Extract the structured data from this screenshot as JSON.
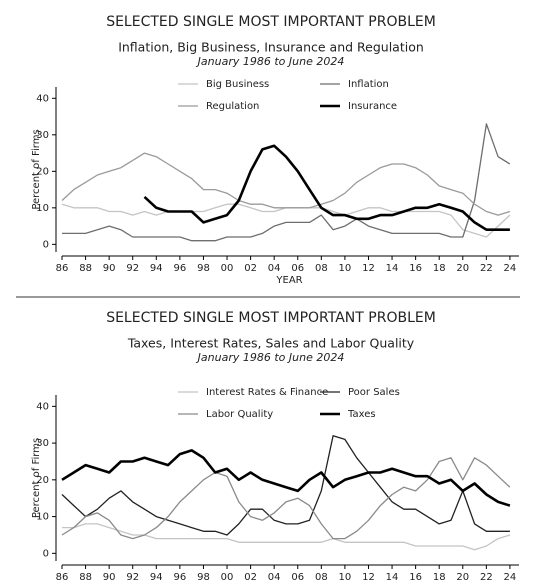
{
  "chart_data": [
    {
      "type": "line",
      "title": "SELECTED SINGLE MOST IMPORTANT PROBLEM",
      "subtitle": "Inflation, Big Business, Insurance and Regulation",
      "date_range": "January 1986 to June 2024",
      "xlabel": "YEAR",
      "ylabel": "Percent of Firms",
      "x": [
        1986,
        1987,
        1988,
        1989,
        1990,
        1991,
        1992,
        1993,
        1994,
        1995,
        1996,
        1997,
        1998,
        1999,
        2000,
        2001,
        2002,
        2003,
        2004,
        2005,
        2006,
        2007,
        2008,
        2009,
        2010,
        2011,
        2012,
        2013,
        2014,
        2015,
        2016,
        2017,
        2018,
        2019,
        2020,
        2021,
        2022,
        2023,
        2024
      ],
      "xlim": [
        1986,
        2024.6
      ],
      "xticks": [
        {
          "value": 1986,
          "label": "86"
        },
        {
          "value": 1988,
          "label": "88"
        },
        {
          "value": 1990,
          "label": "90"
        },
        {
          "value": 1992,
          "label": "92"
        },
        {
          "value": 1994,
          "label": "94"
        },
        {
          "value": 1996,
          "label": "96"
        },
        {
          "value": 1998,
          "label": "98"
        },
        {
          "value": 2000,
          "label": "00"
        },
        {
          "value": 2002,
          "label": "02"
        },
        {
          "value": 2004,
          "label": "04"
        },
        {
          "value": 2006,
          "label": "06"
        },
        {
          "value": 2008,
          "label": "08"
        },
        {
          "value": 2010,
          "label": "10"
        },
        {
          "value": 2012,
          "label": "12"
        },
        {
          "value": 2014,
          "label": "14"
        },
        {
          "value": 2016,
          "label": "16"
        },
        {
          "value": 2018,
          "label": "18"
        },
        {
          "value": 2020,
          "label": "20"
        },
        {
          "value": 2022,
          "label": "22"
        },
        {
          "value": 2024,
          "label": "24"
        }
      ],
      "ylim": [
        -1,
        42
      ],
      "yticks": [
        0,
        10,
        20,
        30,
        40
      ],
      "series": [
        {
          "name": "Big Business",
          "color": "#c4c4c4",
          "width": 1.3,
          "values": [
            11,
            10,
            10,
            10,
            9,
            9,
            8,
            9,
            8,
            9,
            9,
            9,
            9,
            10,
            11,
            11,
            10,
            9,
            9,
            10,
            10,
            10,
            10,
            9,
            8,
            9,
            10,
            10,
            9,
            9,
            9,
            9,
            9,
            8,
            4,
            3,
            2,
            5,
            8
          ]
        },
        {
          "name": "Inflation",
          "color": "#6e6e6e",
          "width": 1.3,
          "values": [
            3,
            3,
            3,
            4,
            5,
            4,
            2,
            2,
            2,
            2,
            2,
            1,
            1,
            1,
            2,
            2,
            2,
            3,
            5,
            6,
            6,
            6,
            8,
            4,
            5,
            7,
            5,
            4,
            3,
            3,
            3,
            3,
            3,
            2,
            2,
            12,
            33,
            24,
            22
          ]
        },
        {
          "name": "Regulation",
          "color": "#9a9a9a",
          "width": 1.3,
          "values": [
            12,
            15,
            17,
            19,
            20,
            21,
            23,
            25,
            24,
            22,
            20,
            18,
            15,
            15,
            14,
            12,
            11,
            11,
            10,
            10,
            10,
            10,
            11,
            12,
            14,
            17,
            19,
            21,
            22,
            22,
            21,
            19,
            16,
            15,
            14,
            11,
            9,
            8,
            9
          ]
        },
        {
          "name": "Insurance",
          "color": "#000000",
          "width": 2.6,
          "values": [
            null,
            null,
            null,
            null,
            null,
            null,
            null,
            13,
            10,
            9,
            9,
            9,
            6,
            7,
            8,
            12,
            20,
            26,
            27,
            24,
            20,
            15,
            10,
            8,
            8,
            7,
            7,
            8,
            8,
            9,
            10,
            10,
            11,
            10,
            9,
            6,
            4,
            4,
            4
          ]
        }
      ]
    },
    {
      "type": "line",
      "title": "SELECTED SINGLE MOST IMPORTANT PROBLEM",
      "subtitle": "Taxes, Interest Rates, Sales and Labor Quality",
      "date_range": "January 1986 to June 2024",
      "ylabel": "Percent of Firms",
      "x": [
        1986,
        1987,
        1988,
        1989,
        1990,
        1991,
        1992,
        1993,
        1994,
        1995,
        1996,
        1997,
        1998,
        1999,
        2000,
        2001,
        2002,
        2003,
        2004,
        2005,
        2006,
        2007,
        2008,
        2009,
        2010,
        2011,
        2012,
        2013,
        2014,
        2015,
        2016,
        2017,
        2018,
        2019,
        2020,
        2021,
        2022,
        2023,
        2024
      ],
      "xlim": [
        1986,
        2024.6
      ],
      "xticks": [
        {
          "value": 1986,
          "label": "86"
        },
        {
          "value": 1988,
          "label": "88"
        },
        {
          "value": 1990,
          "label": "90"
        },
        {
          "value": 1992,
          "label": "92"
        },
        {
          "value": 1994,
          "label": "94"
        },
        {
          "value": 1996,
          "label": "96"
        },
        {
          "value": 1998,
          "label": "98"
        },
        {
          "value": 2000,
          "label": "00"
        },
        {
          "value": 2002,
          "label": "02"
        },
        {
          "value": 2004,
          "label": "04"
        },
        {
          "value": 2006,
          "label": "06"
        },
        {
          "value": 2008,
          "label": "08"
        },
        {
          "value": 2010,
          "label": "10"
        },
        {
          "value": 2012,
          "label": "12"
        },
        {
          "value": 2014,
          "label": "14"
        },
        {
          "value": 2016,
          "label": "16"
        },
        {
          "value": 2018,
          "label": "18"
        },
        {
          "value": 2020,
          "label": "20"
        },
        {
          "value": 2022,
          "label": "22"
        },
        {
          "value": 2024,
          "label": "24"
        }
      ],
      "ylim": [
        -1,
        42
      ],
      "yticks": [
        0,
        10,
        20,
        30,
        40
      ],
      "series": [
        {
          "name": "Interest Rates & Finance",
          "color": "#c4c4c4",
          "width": 1.3,
          "values": [
            7,
            7,
            8,
            8,
            7,
            6,
            5,
            5,
            4,
            4,
            4,
            4,
            4,
            4,
            4,
            3,
            3,
            3,
            3,
            3,
            3,
            3,
            3,
            4,
            3,
            3,
            3,
            3,
            3,
            3,
            2,
            2,
            2,
            2,
            2,
            1,
            2,
            4,
            5
          ]
        },
        {
          "name": "Poor Sales",
          "color": "#222222",
          "width": 1.3,
          "values": [
            16,
            13,
            10,
            12,
            15,
            17,
            14,
            12,
            10,
            9,
            8,
            7,
            6,
            6,
            5,
            8,
            12,
            12,
            9,
            8,
            8,
            9,
            17,
            32,
            31,
            26,
            22,
            18,
            14,
            12,
            12,
            10,
            8,
            9,
            17,
            8,
            6,
            6,
            6
          ]
        },
        {
          "name": "Labor Quality",
          "color": "#8a8a8a",
          "width": 1.3,
          "values": [
            5,
            7,
            10,
            11,
            9,
            5,
            4,
            5,
            7,
            10,
            14,
            17,
            20,
            22,
            21,
            14,
            10,
            9,
            11,
            14,
            15,
            13,
            8,
            4,
            4,
            6,
            9,
            13,
            16,
            18,
            17,
            20,
            25,
            26,
            20,
            26,
            24,
            21,
            18
          ]
        },
        {
          "name": "Taxes",
          "color": "#000000",
          "width": 2.6,
          "values": [
            20,
            22,
            24,
            23,
            22,
            25,
            25,
            26,
            25,
            24,
            27,
            28,
            26,
            22,
            23,
            20,
            22,
            20,
            19,
            18,
            17,
            20,
            22,
            18,
            20,
            21,
            22,
            22,
            23,
            22,
            21,
            21,
            19,
            20,
            17,
            19,
            16,
            14,
            13
          ]
        }
      ]
    }
  ]
}
